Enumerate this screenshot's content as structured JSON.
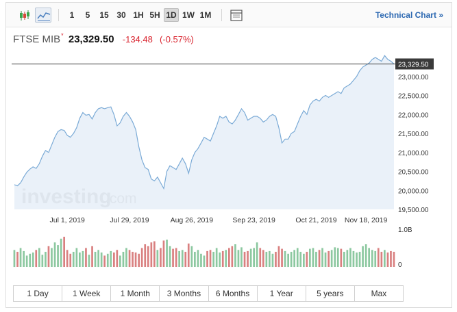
{
  "toolbar": {
    "chart_types": [
      {
        "icon": "candlestick-icon",
        "active": false
      },
      {
        "icon": "area-chart-icon",
        "active": true
      }
    ],
    "intervals": [
      {
        "label": "1",
        "active": false
      },
      {
        "label": "5",
        "active": false
      },
      {
        "label": "15",
        "active": false
      },
      {
        "label": "30",
        "active": false
      },
      {
        "label": "1H",
        "active": false
      },
      {
        "label": "5H",
        "active": false
      },
      {
        "label": "1D",
        "active": true
      },
      {
        "label": "1W",
        "active": false
      },
      {
        "label": "1M",
        "active": false
      }
    ],
    "settings_icon": "panel-icon",
    "technical_chart_label": "Technical Chart",
    "technical_chart_arrow": "»"
  },
  "quote": {
    "name": "FTSE MIB",
    "marker": "*",
    "price": "23,329.50",
    "change": "-134.48",
    "change_pct": "(-0.57%)"
  },
  "chart_data": {
    "type": "area",
    "current_value_label": "23,329.50",
    "current_value": 23329.5,
    "y_ticks": [
      "23,000.00",
      "22,500.00",
      "22,000.00",
      "21,500.00",
      "21,000.00",
      "20,500.00",
      "20,000.00",
      "19,500.00"
    ],
    "y_tick_values": [
      23000,
      22500,
      22000,
      21500,
      21000,
      20500,
      20000,
      19500
    ],
    "ylim": [
      19500,
      23500
    ],
    "x_tick_labels": [
      "Jul 1, 2019",
      "Jul 29, 2019",
      "Aug 26, 2019",
      "Sep 23, 2019",
      "Oct 21, 2019",
      "Nov 18, 2019"
    ],
    "x_tick_index": [
      17,
      37,
      57,
      77,
      97,
      113
    ],
    "series": [
      {
        "values": [
          20150,
          20120,
          20200,
          20350,
          20480,
          20560,
          20620,
          20580,
          20700,
          20900,
          21050,
          21000,
          21200,
          21400,
          21550,
          21600,
          21580,
          21450,
          21400,
          21500,
          21650,
          21900,
          22050,
          21980,
          22000,
          21880,
          22050,
          22150,
          22180,
          22150,
          22180,
          22200,
          22000,
          21700,
          21780,
          21950,
          22050,
          21950,
          21800,
          21600,
          21150,
          20800,
          20600,
          20550,
          20300,
          20250,
          20350,
          20200,
          20050,
          20500,
          20650,
          20600,
          20550,
          20700,
          20850,
          20700,
          20450,
          20800,
          21000,
          21100,
          21250,
          21400,
          21350,
          21300,
          21500,
          21700,
          21950,
          21900,
          21950,
          21800,
          21750,
          21850,
          22000,
          22150,
          22050,
          21850,
          21900,
          21950,
          21950,
          21900,
          21800,
          21850,
          21950,
          22000,
          21950,
          21650,
          21250,
          21350,
          21350,
          21500,
          21550,
          21750,
          21950,
          22100,
          22000,
          22250,
          22350,
          22400,
          22350,
          22450,
          22500,
          22450,
          22500,
          22550,
          22600,
          22550,
          22700,
          22750,
          22800,
          22900,
          23000,
          23150,
          23250,
          23300,
          23350,
          23450,
          23500,
          23450,
          23400,
          23550,
          23450,
          23400,
          23329.5
        ]
      }
    ],
    "volume_ticks": [
      "1.0B",
      "0"
    ],
    "volume_tick_values": [
      1.0,
      0
    ],
    "volume": {
      "values": [
        0.45,
        0.4,
        0.5,
        0.42,
        0.3,
        0.35,
        0.38,
        0.45,
        0.5,
        0.32,
        0.4,
        0.55,
        0.5,
        0.65,
        0.58,
        0.75,
        0.8,
        0.45,
        0.35,
        0.4,
        0.5,
        0.38,
        0.42,
        0.5,
        0.32,
        0.55,
        0.4,
        0.45,
        0.38,
        0.3,
        0.35,
        0.42,
        0.38,
        0.45,
        0.3,
        0.4,
        0.5,
        0.45,
        0.4,
        0.38,
        0.35,
        0.5,
        0.6,
        0.55,
        0.65,
        0.68,
        0.45,
        0.5,
        0.7,
        0.72,
        0.55,
        0.48,
        0.5,
        0.42,
        0.45,
        0.4,
        0.62,
        0.55,
        0.4,
        0.45,
        0.35,
        0.3,
        0.42,
        0.45,
        0.4,
        0.5,
        0.38,
        0.42,
        0.45,
        0.5,
        0.55,
        0.6,
        0.45,
        0.52,
        0.4,
        0.42,
        0.48,
        0.5,
        0.65,
        0.5,
        0.45,
        0.4,
        0.42,
        0.35,
        0.4,
        0.55,
        0.48,
        0.42,
        0.35,
        0.4,
        0.45,
        0.5,
        0.4,
        0.35,
        0.4,
        0.48,
        0.5,
        0.4,
        0.45,
        0.5,
        0.38,
        0.42,
        0.45,
        0.52,
        0.5,
        0.48,
        0.4,
        0.45,
        0.5,
        0.42,
        0.38,
        0.4,
        0.55,
        0.6,
        0.5,
        0.45,
        0.42,
        0.5,
        0.4,
        0.45,
        0.38,
        0.42,
        0.4
      ],
      "up_color": "#8cc8a0",
      "down_color": "#d98080"
    },
    "line_color": "#7aaad6",
    "fill_color": "#e6eef8",
    "grid": false
  },
  "watermark": {
    "text": "investing",
    "suffix": ".com"
  },
  "ranges": [
    {
      "label": "1 Day"
    },
    {
      "label": "1 Week"
    },
    {
      "label": "1 Month"
    },
    {
      "label": "3 Months"
    },
    {
      "label": "6 Months"
    },
    {
      "label": "1 Year"
    },
    {
      "label": "5 years"
    },
    {
      "label": "Max"
    }
  ]
}
